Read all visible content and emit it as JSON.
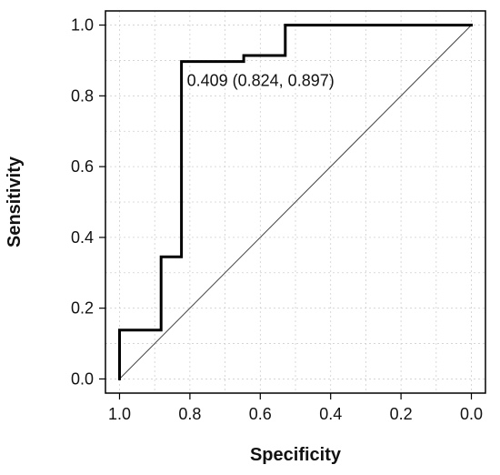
{
  "chart_data": {
    "type": "line",
    "title": "",
    "xlabel": "Specificity",
    "ylabel": "Sensitivity",
    "xlim": [
      1.0,
      0.0
    ],
    "ylim": [
      0.0,
      1.0
    ],
    "x_reversed": true,
    "grid": true,
    "x_ticks": [
      1.0,
      0.8,
      0.6,
      0.4,
      0.2,
      0.0
    ],
    "x_tick_labels": [
      "1.0",
      "0.8",
      "0.6",
      "0.4",
      "0.2",
      "0.0"
    ],
    "y_ticks": [
      0.0,
      0.2,
      0.4,
      0.6,
      0.8,
      1.0
    ],
    "y_tick_labels": [
      "0.0",
      "0.2",
      "0.4",
      "0.6",
      "0.8",
      "1.0"
    ],
    "series": [
      {
        "type": "step",
        "x": [
          1.0,
          1.0,
          0.882,
          0.882,
          0.824,
          0.824,
          0.647,
          0.647,
          0.529,
          0.529,
          0.0
        ],
        "y": [
          0.0,
          0.138,
          0.138,
          0.345,
          0.345,
          0.897,
          0.897,
          0.914,
          0.914,
          1.0,
          1.0
        ],
        "color": "#000000"
      },
      {
        "type": "reference-diagonal",
        "x": [
          1.0,
          0.0
        ],
        "y": [
          0.0,
          1.0
        ],
        "color": "#444444"
      }
    ],
    "annotations": [
      {
        "text": "0.409 (0.824, 0.897)",
        "x": 0.824,
        "y": 0.897
      }
    ]
  }
}
